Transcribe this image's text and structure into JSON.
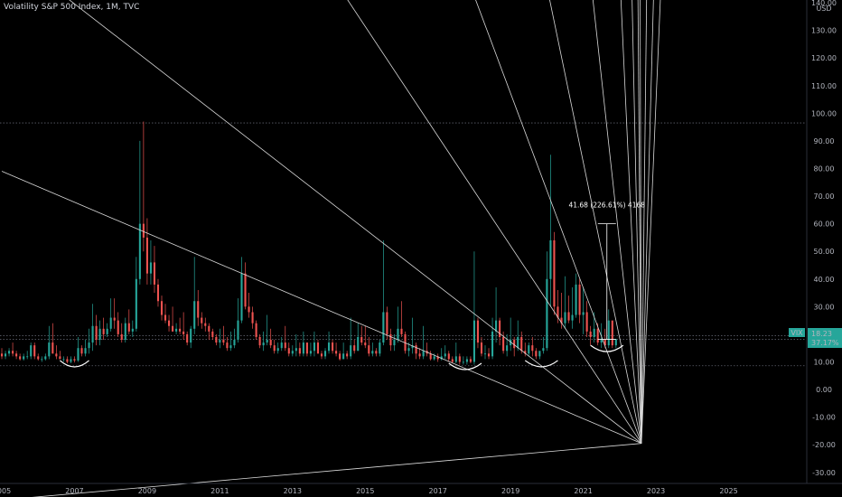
{
  "header": {
    "title": "Volatility S&P 500 Index, 1M, TVC"
  },
  "chart_data": {
    "type": "candlestick",
    "title": "Volatility S&P 500 Index, 1M, TVC",
    "symbol": "VIX",
    "currency": "USD",
    "last_value": "18.23",
    "last_change": "37.17%",
    "measure_label": "41.68 (226.61%) 4168",
    "x_range": [
      2005.0,
      2027.0
    ],
    "x_ticks": [
      "2005",
      "2007",
      "2009",
      "2011",
      "2013",
      "2015",
      "2017",
      "2019",
      "2021",
      "2023",
      "2025"
    ],
    "y_range": [
      -34,
      141
    ],
    "y_ticks": [
      "140.00",
      "130.00",
      "120.00",
      "110.00",
      "100.00",
      "90.00",
      "80.00",
      "70.00",
      "60.00",
      "50.00",
      "40.00",
      "30.00",
      "20.00",
      "10.00",
      "0.00",
      "-10.00",
      "-20.00",
      "-30.00"
    ],
    "y_tick_values": [
      140,
      130,
      120,
      110,
      100,
      90,
      80,
      70,
      60,
      50,
      40,
      30,
      20,
      10,
      0,
      -10,
      -20,
      -30
    ],
    "hlines": [
      96.5,
      19.5,
      18.2,
      8.6
    ],
    "fan_origin": {
      "year": 2022.6,
      "value": -19.5
    },
    "fan_lines": [
      {
        "year": 2005.0,
        "value": 79
      },
      {
        "year": 2005.0,
        "value": 160
      },
      {
        "year": 2005.0,
        "value": 330
      },
      {
        "year": 2005.0,
        "value": 600
      },
      {
        "year": 2005.0,
        "value": 1100
      },
      {
        "year": 2005.0,
        "value": 2100
      },
      {
        "year": 2005.0,
        "value": 5000
      },
      {
        "year": 2005.0,
        "value": 11000
      },
      {
        "year": 2005.0,
        "value": 30000
      },
      {
        "year": 2005.0,
        "value": 80000
      },
      {
        "year": 2005.0,
        "value": -40
      }
    ],
    "arcs": [
      {
        "x0": 2006.6,
        "x1": 2007.4,
        "y": 10.5
      },
      {
        "x0": 2017.3,
        "x1": 2018.2,
        "y": 9.5
      },
      {
        "x0": 2019.4,
        "x1": 2020.3,
        "y": 10.5
      },
      {
        "x0": 2021.2,
        "x1": 2022.1,
        "y": 16
      }
    ],
    "colors": {
      "up": "#26a69a",
      "down": "#ef5350",
      "line": "#d9d9d9",
      "axis_text": "#b2b5be",
      "vix_tag": "#26a69a"
    },
    "candles": [
      [
        2005.0,
        13,
        15,
        11,
        12
      ],
      [
        2005.1,
        12,
        14,
        11,
        13
      ],
      [
        2005.2,
        13,
        15,
        12,
        14
      ],
      [
        2005.3,
        14,
        17,
        12,
        13
      ],
      [
        2005.4,
        13,
        14,
        11,
        12
      ],
      [
        2005.5,
        12,
        13,
        10.5,
        11
      ],
      [
        2005.6,
        11,
        13,
        10.5,
        12
      ],
      [
        2005.7,
        12,
        14,
        11,
        12
      ],
      [
        2005.8,
        12,
        17,
        11,
        16
      ],
      [
        2005.9,
        16,
        17,
        11,
        12
      ],
      [
        2006.0,
        12,
        13,
        10.5,
        11
      ],
      [
        2006.1,
        11,
        12,
        10,
        11
      ],
      [
        2006.2,
        11,
        13,
        10.5,
        12
      ],
      [
        2006.3,
        12,
        23,
        11,
        17
      ],
      [
        2006.4,
        17,
        24,
        13,
        13
      ],
      [
        2006.5,
        13,
        16,
        11,
        12
      ],
      [
        2006.6,
        12,
        14,
        11,
        11
      ],
      [
        2006.7,
        11,
        12,
        10,
        11
      ],
      [
        2006.8,
        11,
        12,
        9.5,
        10
      ],
      [
        2006.9,
        10,
        12,
        9.5,
        11
      ],
      [
        2007.0,
        11,
        12,
        9.8,
        10.5
      ],
      [
        2007.1,
        10.5,
        19,
        10,
        15
      ],
      [
        2007.2,
        15,
        16,
        12,
        13
      ],
      [
        2007.3,
        13,
        18,
        12,
        15
      ],
      [
        2007.4,
        15,
        22,
        13,
        17
      ],
      [
        2007.5,
        17,
        31,
        14,
        23
      ],
      [
        2007.6,
        23,
        27,
        16,
        18
      ],
      [
        2007.7,
        18,
        25,
        16,
        22
      ],
      [
        2007.8,
        22,
        26,
        18,
        20
      ],
      [
        2007.9,
        20,
        24,
        19,
        22
      ],
      [
        2008.0,
        22,
        33,
        21,
        26
      ],
      [
        2008.1,
        26,
        33,
        22,
        25
      ],
      [
        2008.2,
        25,
        28,
        19,
        20
      ],
      [
        2008.3,
        20,
        24,
        17,
        18
      ],
      [
        2008.4,
        18,
        26,
        17,
        24
      ],
      [
        2008.5,
        24,
        29,
        20,
        21
      ],
      [
        2008.6,
        21,
        25,
        19,
        22
      ],
      [
        2008.7,
        22,
        48,
        21,
        40
      ],
      [
        2008.8,
        40,
        90,
        38,
        60
      ],
      [
        2008.9,
        60,
        97,
        50,
        55
      ],
      [
        2009.0,
        55,
        62,
        38,
        42
      ],
      [
        2009.1,
        42,
        54,
        38,
        46
      ],
      [
        2009.2,
        46,
        52,
        35,
        38
      ],
      [
        2009.3,
        38,
        40,
        30,
        32
      ],
      [
        2009.4,
        32,
        34,
        25,
        27
      ],
      [
        2009.5,
        27,
        31,
        24,
        25
      ],
      [
        2009.6,
        25,
        27,
        21,
        23
      ],
      [
        2009.7,
        23,
        30,
        21,
        21
      ],
      [
        2009.8,
        21,
        24,
        20,
        22
      ],
      [
        2009.9,
        22,
        26,
        20,
        21
      ],
      [
        2010.0,
        21,
        28,
        18,
        20
      ],
      [
        2010.1,
        20,
        21,
        16,
        17
      ],
      [
        2010.2,
        17,
        23,
        15,
        22
      ],
      [
        2010.3,
        22,
        48,
        20,
        32
      ],
      [
        2010.4,
        32,
        36,
        23,
        26
      ],
      [
        2010.5,
        26,
        28,
        22,
        24
      ],
      [
        2010.6,
        24,
        26,
        21,
        23
      ],
      [
        2010.7,
        23,
        24,
        18,
        21
      ],
      [
        2010.8,
        21,
        22,
        18,
        19
      ],
      [
        2010.9,
        19,
        20,
        16,
        17
      ],
      [
        2011.0,
        17,
        22,
        15,
        18
      ],
      [
        2011.1,
        18,
        23,
        16,
        17
      ],
      [
        2011.2,
        17,
        19,
        14,
        15
      ],
      [
        2011.3,
        15,
        21,
        14,
        16
      ],
      [
        2011.4,
        16,
        22,
        15,
        18
      ],
      [
        2011.5,
        18,
        33,
        17,
        25
      ],
      [
        2011.6,
        25,
        48,
        24,
        42
      ],
      [
        2011.7,
        42,
        46,
        29,
        30
      ],
      [
        2011.8,
        30,
        35,
        26,
        28
      ],
      [
        2011.9,
        28,
        30,
        22,
        24
      ],
      [
        2012.0,
        24,
        25,
        18,
        19
      ],
      [
        2012.1,
        19,
        20,
        15,
        16
      ],
      [
        2012.2,
        16,
        21,
        14,
        17
      ],
      [
        2012.3,
        17,
        27,
        16,
        18
      ],
      [
        2012.4,
        18,
        22,
        15,
        16
      ],
      [
        2012.5,
        16,
        18,
        13,
        14
      ],
      [
        2012.6,
        14,
        17,
        13,
        15
      ],
      [
        2012.7,
        15,
        19,
        14,
        17
      ],
      [
        2012.8,
        17,
        23,
        14,
        15
      ],
      [
        2012.9,
        15,
        17,
        12,
        13
      ],
      [
        2013.0,
        13,
        16,
        12,
        14
      ],
      [
        2013.1,
        14,
        20,
        12,
        15
      ],
      [
        2013.2,
        15,
        17,
        12,
        13
      ],
      [
        2013.3,
        13,
        21,
        12,
        17
      ],
      [
        2013.4,
        17,
        17,
        12,
        13
      ],
      [
        2013.5,
        13,
        17,
        12,
        14
      ],
      [
        2013.6,
        14,
        21,
        12,
        17
      ],
      [
        2013.7,
        17,
        18,
        13,
        13
      ],
      [
        2013.8,
        13,
        14,
        11,
        12
      ],
      [
        2013.9,
        12,
        15,
        11,
        14
      ],
      [
        2014.0,
        14,
        21,
        13,
        17
      ],
      [
        2014.1,
        17,
        18,
        13,
        14
      ],
      [
        2014.2,
        14,
        17,
        12,
        13
      ],
      [
        2014.3,
        13,
        14,
        10.5,
        11
      ],
      [
        2014.4,
        11,
        17,
        11,
        13
      ],
      [
        2014.5,
        13,
        14,
        11,
        12
      ],
      [
        2014.6,
        12,
        26,
        11,
        16
      ],
      [
        2014.7,
        16,
        18,
        13,
        14
      ],
      [
        2014.8,
        14,
        24,
        14,
        19
      ],
      [
        2014.9,
        19,
        23,
        16,
        17
      ],
      [
        2015.0,
        17,
        23,
        15,
        16
      ],
      [
        2015.1,
        16,
        19,
        12,
        13
      ],
      [
        2015.2,
        13,
        17,
        12,
        14
      ],
      [
        2015.3,
        14,
        15,
        12,
        13
      ],
      [
        2015.4,
        13,
        18,
        12,
        17
      ],
      [
        2015.5,
        17,
        54,
        16,
        28
      ],
      [
        2015.6,
        28,
        30,
        18,
        20
      ],
      [
        2015.7,
        20,
        22,
        14,
        16
      ],
      [
        2015.8,
        16,
        20,
        14,
        18
      ],
      [
        2015.9,
        18,
        30,
        17,
        22
      ],
      [
        2016.0,
        22,
        32,
        19,
        20
      ],
      [
        2016.1,
        20,
        21,
        13,
        14
      ],
      [
        2016.2,
        14,
        17,
        12,
        15
      ],
      [
        2016.3,
        15,
        26,
        13,
        16
      ],
      [
        2016.4,
        16,
        17,
        11,
        13
      ],
      [
        2016.5,
        13,
        15,
        11,
        12
      ],
      [
        2016.6,
        12,
        23,
        11,
        14
      ],
      [
        2016.7,
        14,
        17,
        12,
        13
      ],
      [
        2016.8,
        13,
        14,
        10.5,
        11
      ],
      [
        2016.9,
        11,
        13,
        10.5,
        12
      ],
      [
        2017.0,
        12,
        13,
        10,
        11
      ],
      [
        2017.1,
        11,
        15,
        10.5,
        12
      ],
      [
        2017.2,
        12,
        16,
        11,
        13
      ],
      [
        2017.3,
        13,
        14,
        10,
        11
      ],
      [
        2017.4,
        11,
        12,
        9.5,
        10
      ],
      [
        2017.5,
        10,
        17,
        9.5,
        12
      ],
      [
        2017.6,
        12,
        13,
        9,
        10
      ],
      [
        2017.7,
        10,
        12,
        9,
        10
      ],
      [
        2017.8,
        10,
        12,
        9,
        11
      ],
      [
        2017.9,
        11,
        12,
        9.5,
        10
      ],
      [
        2018.0,
        10,
        50,
        9,
        25
      ],
      [
        2018.1,
        25,
        26,
        15,
        17
      ],
      [
        2018.2,
        17,
        19,
        12,
        13
      ],
      [
        2018.3,
        13,
        16,
        11,
        13
      ],
      [
        2018.4,
        13,
        15,
        11,
        12
      ],
      [
        2018.5,
        12,
        26,
        11,
        21
      ],
      [
        2018.6,
        21,
        37,
        17,
        25
      ],
      [
        2018.7,
        25,
        26,
        16,
        19
      ],
      [
        2018.8,
        19,
        21,
        13,
        14
      ],
      [
        2018.9,
        14,
        20,
        12,
        16
      ],
      [
        2019.0,
        16,
        26,
        14,
        18
      ],
      [
        2019.1,
        18,
        19,
        12,
        15
      ],
      [
        2019.2,
        15,
        25,
        14,
        19
      ],
      [
        2019.3,
        19,
        21,
        13,
        14
      ],
      [
        2019.4,
        14,
        17,
        12,
        13
      ],
      [
        2019.5,
        13,
        17,
        12,
        16
      ],
      [
        2019.6,
        16,
        19,
        12,
        14
      ],
      [
        2019.7,
        14,
        15,
        11,
        12
      ],
      [
        2019.8,
        12,
        13,
        11,
        14
      ],
      [
        2019.9,
        14,
        19,
        13,
        15
      ],
      [
        2020.0,
        15,
        50,
        14,
        40
      ],
      [
        2020.1,
        40,
        85,
        30,
        54
      ],
      [
        2020.2,
        54,
        57,
        27,
        30
      ],
      [
        2020.3,
        30,
        36,
        24,
        26
      ],
      [
        2020.4,
        26,
        35,
        22,
        24
      ],
      [
        2020.5,
        24,
        41,
        22,
        28
      ],
      [
        2020.6,
        28,
        34,
        24,
        25
      ],
      [
        2020.7,
        25,
        37,
        22,
        27
      ],
      [
        2020.8,
        27,
        42,
        26,
        38
      ],
      [
        2020.9,
        38,
        40,
        24,
        27
      ],
      [
        2021.0,
        27,
        37,
        20,
        28
      ],
      [
        2021.1,
        28,
        32,
        19,
        21
      ],
      [
        2021.2,
        21,
        23,
        16,
        19
      ],
      [
        2021.3,
        19,
        28,
        17,
        22
      ],
      [
        2021.4,
        22,
        24,
        16,
        17
      ],
      [
        2021.5,
        17,
        24,
        15,
        18
      ],
      [
        2021.6,
        18,
        22,
        15,
        16
      ],
      [
        2021.7,
        16,
        29,
        15,
        25
      ],
      [
        2021.8,
        25,
        24,
        15,
        16
      ],
      [
        2021.9,
        16,
        17,
        15,
        18.23
      ]
    ]
  }
}
